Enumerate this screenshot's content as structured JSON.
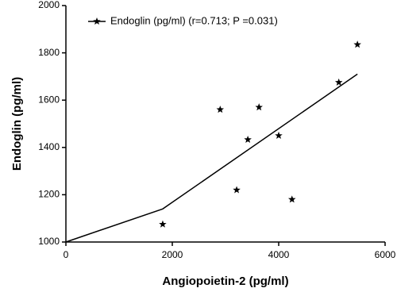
{
  "chart_data": {
    "type": "scatter",
    "x_label": "Angiopoietin-2 (pg/ml)",
    "y_label": "Endoglin (pg/ml)",
    "xlim": [
      0,
      6000
    ],
    "xticks": [
      0,
      2000,
      4000,
      6000
    ],
    "ylim": [
      1000,
      2000
    ],
    "yticks": [
      1000,
      1200,
      1400,
      1600,
      1800,
      2000
    ],
    "legend": "upper left",
    "series": [
      {
        "name": "Endoglin (pg/ml) (r=0.713; P =0.031)",
        "color": "#000000",
        "x": [
          1820,
          2900,
          3210,
          3420,
          3630,
          4000,
          4250,
          5130,
          5480
        ],
        "values": [
          1075,
          1560,
          1220,
          1433,
          1570,
          1450,
          1180,
          1675,
          1835
        ],
        "fit": {
          "x": [
            0,
            1820,
            5480
          ],
          "values": [
            1000,
            1140,
            1710
          ]
        }
      }
    ]
  }
}
